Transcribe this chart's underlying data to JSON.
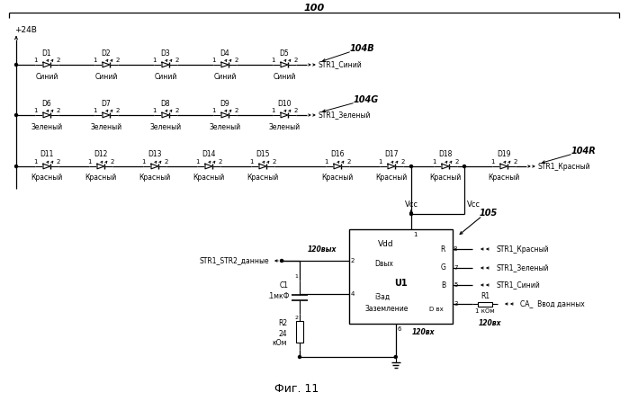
{
  "title": "100",
  "fig_label": "Фиг. 11",
  "bg_color": "#ffffff",
  "line_color": "#000000",
  "figsize": [
    6.99,
    4.46
  ],
  "dpi": 100,
  "blue_leds": [
    "D1",
    "D2",
    "D3",
    "D4",
    "D5"
  ],
  "green_leds": [
    "D6",
    "D7",
    "D8",
    "D9",
    "D10"
  ],
  "red_leds": [
    "D11",
    "D12",
    "D13",
    "D14",
    "D15",
    "D16",
    "D17",
    "D18",
    "D19"
  ],
  "blue_label": "104B",
  "green_label": "104G",
  "red_label": "104R",
  "blue_str": "STR1_Синий",
  "green_str": "STR1_Зеленый",
  "red_str": "STR1_Красный",
  "blue_sub": "Синий",
  "green_sub": "Зеленый",
  "red_sub": "Красный",
  "vcc_label": "Vcc",
  "vdd_label": "Vdd",
  "u1_label": "U1",
  "dvyh_label": "Dвых",
  "dvx_label": "D вх",
  "izad_label": "iЗад",
  "zaz_label": "Заземление",
  "120vyh_label": "120вых",
  "120vx_label": "120вх",
  "str1_str2_label": "STR1_STR2_данные",
  "c1_label": "C1",
  "c1_val": ".1мкФ",
  "r2_label": "R2",
  "r2_val": "24",
  "r2_unit": "кОм",
  "r1_label": "R1",
  "r1_val": "1 кОм",
  "r_label": "R",
  "g_label": "G",
  "b_label": "B",
  "str1_red": "STR1_Красный",
  "str1_green": "STR1_Зеленый",
  "str1_blue": "STR1_Синий",
  "ca_label": "CA_  Ввод данных",
  "label_105": "105",
  "power_label": "+24В"
}
